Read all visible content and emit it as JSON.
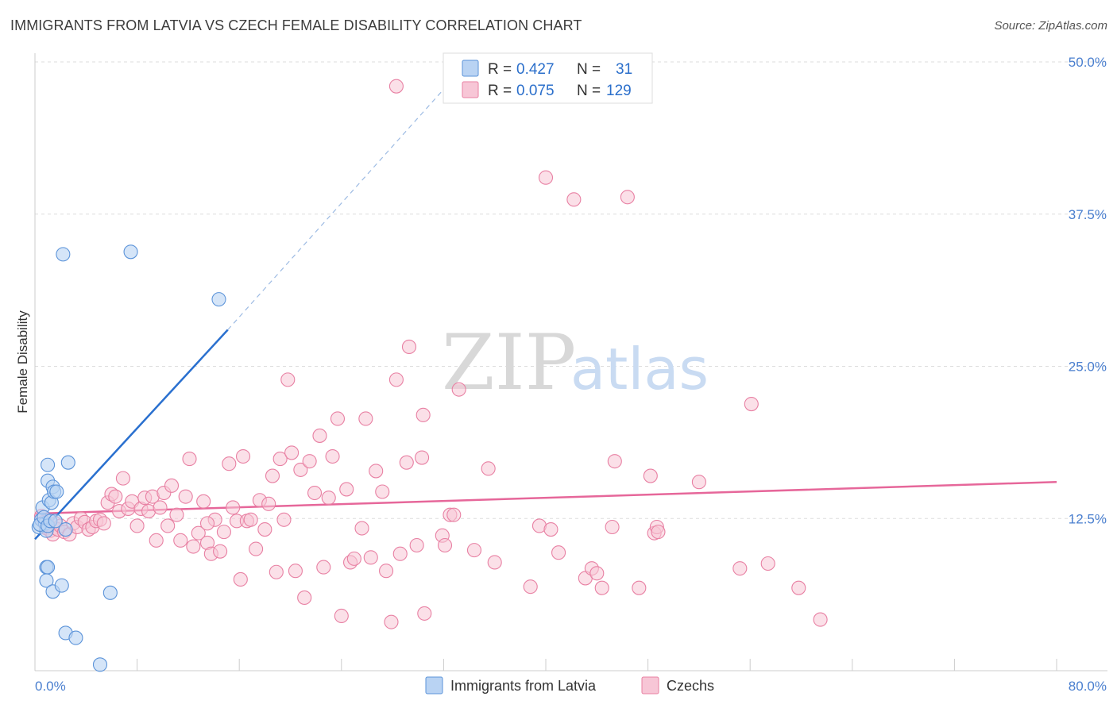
{
  "title": "IMMIGRANTS FROM LATVIA VS CZECH FEMALE DISABILITY CORRELATION CHART",
  "source": "Source: ZipAtlas.com",
  "watermark": {
    "zip": "ZIP",
    "atlas": "atlas"
  },
  "colors": {
    "blue": "#5b93d9",
    "blue_fill": "#b9d3f3",
    "blue_line": "#2a70cf",
    "pink": "#e880a3",
    "pink_fill": "#f7c6d6",
    "pink_line": "#e6679a",
    "axis_label": "#4a7fcf",
    "grid": "#dddddd"
  },
  "legend": {
    "rows": [
      {
        "r_label": "R =",
        "r_value": "0.427",
        "n_label": "N =",
        "n_value": "31"
      },
      {
        "r_label": "R =",
        "r_value": "0.075",
        "n_label": "N =",
        "n_value": "129"
      }
    ]
  },
  "bottom_legend": [
    "Immigrants from Latvia",
    "Czechs"
  ],
  "chart_data": {
    "type": "scatter",
    "title": "IMMIGRANTS FROM LATVIA VS CZECH FEMALE DISABILITY CORRELATION CHART",
    "xlabel": "",
    "ylabel": "Female Disability",
    "xlim": [
      0,
      80
    ],
    "ylim": [
      0,
      52
    ],
    "x_tick_labels": [
      "0.0%",
      "80.0%"
    ],
    "y_ticks": [
      12.5,
      25.0,
      37.5,
      50.0
    ],
    "y_tick_labels": [
      "12.5%",
      "25.0%",
      "37.5%",
      "50.0%"
    ],
    "grid": true,
    "legend_position": "top-center",
    "series": [
      {
        "name": "Immigrants from Latvia",
        "r": 0.427,
        "n": 31,
        "trend": {
          "x0": 0,
          "y0": 10.8,
          "x1": 15.1,
          "y1": 28.0,
          "dashed_to_x": 33.5,
          "dashed_to_y": 49.5
        },
        "points": [
          [
            0.3,
            11.8
          ],
          [
            0.5,
            12.4
          ],
          [
            0.6,
            13.4
          ],
          [
            0.8,
            12.1
          ],
          [
            0.9,
            11.5
          ],
          [
            0.4,
            12.0
          ],
          [
            0.7,
            12.6
          ],
          [
            1.0,
            11.9
          ],
          [
            1.2,
            12.3
          ],
          [
            1.1,
            14.0
          ],
          [
            1.3,
            13.8
          ],
          [
            1.0,
            15.6
          ],
          [
            1.4,
            15.1
          ],
          [
            1.5,
            14.7
          ],
          [
            1.7,
            14.7
          ],
          [
            1.6,
            12.3
          ],
          [
            2.4,
            11.6
          ],
          [
            1.0,
            16.9
          ],
          [
            2.6,
            17.1
          ],
          [
            0.9,
            8.5
          ],
          [
            1.0,
            8.5
          ],
          [
            0.9,
            7.4
          ],
          [
            1.4,
            6.5
          ],
          [
            2.1,
            7.0
          ],
          [
            5.9,
            6.4
          ],
          [
            2.4,
            3.1
          ],
          [
            3.2,
            2.7
          ],
          [
            5.1,
            0.5
          ],
          [
            2.2,
            34.2
          ],
          [
            7.5,
            34.4
          ],
          [
            14.4,
            30.5
          ]
        ]
      },
      {
        "name": "Czechs",
        "r": 0.075,
        "n": 129,
        "trend": {
          "x0": 0,
          "y0": 12.9,
          "x1": 80,
          "y1": 15.5
        },
        "points": [
          [
            0.5,
            12.7
          ],
          [
            0.7,
            12.2
          ],
          [
            0.9,
            11.7
          ],
          [
            1.0,
            12.0
          ],
          [
            1.2,
            11.5
          ],
          [
            1.4,
            11.2
          ],
          [
            1.6,
            12.1
          ],
          [
            1.8,
            11.6
          ],
          [
            2.0,
            11.9
          ],
          [
            2.3,
            11.4
          ],
          [
            2.7,
            11.2
          ],
          [
            3.0,
            12.1
          ],
          [
            3.3,
            11.8
          ],
          [
            3.6,
            12.5
          ],
          [
            3.9,
            12.2
          ],
          [
            4.2,
            11.6
          ],
          [
            4.5,
            11.8
          ],
          [
            4.8,
            12.3
          ],
          [
            5.1,
            12.4
          ],
          [
            5.4,
            12.1
          ],
          [
            5.7,
            13.8
          ],
          [
            6.0,
            14.5
          ],
          [
            6.3,
            14.3
          ],
          [
            6.6,
            13.1
          ],
          [
            6.9,
            15.8
          ],
          [
            7.3,
            13.3
          ],
          [
            7.6,
            13.9
          ],
          [
            8.0,
            11.9
          ],
          [
            8.3,
            13.3
          ],
          [
            8.6,
            14.2
          ],
          [
            8.9,
            13.1
          ],
          [
            9.2,
            14.3
          ],
          [
            9.5,
            10.7
          ],
          [
            9.8,
            13.4
          ],
          [
            10.1,
            14.6
          ],
          [
            10.4,
            11.9
          ],
          [
            10.7,
            15.2
          ],
          [
            11.1,
            12.8
          ],
          [
            11.4,
            10.7
          ],
          [
            11.8,
            14.3
          ],
          [
            12.1,
            17.4
          ],
          [
            12.4,
            10.2
          ],
          [
            12.8,
            11.3
          ],
          [
            13.2,
            13.9
          ],
          [
            13.5,
            10.5
          ],
          [
            13.8,
            9.6
          ],
          [
            14.1,
            12.4
          ],
          [
            14.5,
            9.8
          ],
          [
            14.8,
            11.4
          ],
          [
            15.2,
            17.0
          ],
          [
            15.5,
            13.4
          ],
          [
            15.8,
            12.3
          ],
          [
            16.1,
            7.5
          ],
          [
            16.3,
            17.6
          ],
          [
            16.6,
            12.3
          ],
          [
            16.9,
            12.4
          ],
          [
            17.3,
            10.0
          ],
          [
            17.6,
            14.0
          ],
          [
            18.0,
            11.6
          ],
          [
            18.3,
            13.7
          ],
          [
            18.6,
            16.0
          ],
          [
            18.9,
            8.1
          ],
          [
            19.2,
            17.4
          ],
          [
            19.5,
            12.4
          ],
          [
            19.8,
            23.9
          ],
          [
            20.1,
            17.9
          ],
          [
            20.4,
            8.2
          ],
          [
            20.8,
            16.5
          ],
          [
            21.1,
            6.0
          ],
          [
            21.5,
            17.2
          ],
          [
            21.9,
            14.6
          ],
          [
            22.3,
            19.3
          ],
          [
            22.6,
            8.5
          ],
          [
            23.0,
            14.2
          ],
          [
            23.3,
            17.6
          ],
          [
            23.7,
            20.7
          ],
          [
            24.0,
            4.5
          ],
          [
            24.4,
            14.9
          ],
          [
            24.7,
            8.9
          ],
          [
            25.0,
            9.2
          ],
          [
            25.6,
            11.7
          ],
          [
            25.9,
            20.7
          ],
          [
            26.3,
            9.3
          ],
          [
            26.7,
            16.4
          ],
          [
            27.2,
            14.7
          ],
          [
            27.5,
            8.2
          ],
          [
            27.9,
            4.0
          ],
          [
            28.3,
            23.9
          ],
          [
            28.6,
            9.6
          ],
          [
            29.1,
            17.1
          ],
          [
            29.3,
            26.6
          ],
          [
            29.9,
            10.3
          ],
          [
            30.4,
            21.0
          ],
          [
            30.5,
            4.7
          ],
          [
            31.9,
            11.1
          ],
          [
            32.1,
            10.3
          ],
          [
            32.5,
            12.8
          ],
          [
            32.8,
            12.8
          ],
          [
            33.2,
            23.1
          ],
          [
            34.4,
            9.9
          ],
          [
            35.5,
            16.6
          ],
          [
            36.0,
            8.9
          ],
          [
            38.8,
            6.9
          ],
          [
            39.5,
            11.9
          ],
          [
            40.0,
            40.5
          ],
          [
            40.4,
            11.6
          ],
          [
            41.0,
            9.7
          ],
          [
            42.2,
            38.7
          ],
          [
            43.1,
            7.6
          ],
          [
            43.6,
            8.4
          ],
          [
            44.0,
            8.0
          ],
          [
            44.4,
            6.8
          ],
          [
            45.2,
            11.8
          ],
          [
            45.4,
            17.2
          ],
          [
            46.4,
            38.9
          ],
          [
            47.3,
            6.8
          ],
          [
            48.2,
            16.0
          ],
          [
            48.5,
            11.3
          ],
          [
            48.7,
            11.8
          ],
          [
            48.8,
            11.4
          ],
          [
            52.0,
            15.5
          ],
          [
            55.2,
            8.4
          ],
          [
            56.1,
            21.9
          ],
          [
            57.4,
            8.8
          ],
          [
            59.8,
            6.8
          ],
          [
            61.5,
            4.2
          ],
          [
            30.3,
            17.5
          ],
          [
            28.3,
            48.0
          ],
          [
            13.5,
            12.1
          ]
        ]
      }
    ]
  }
}
